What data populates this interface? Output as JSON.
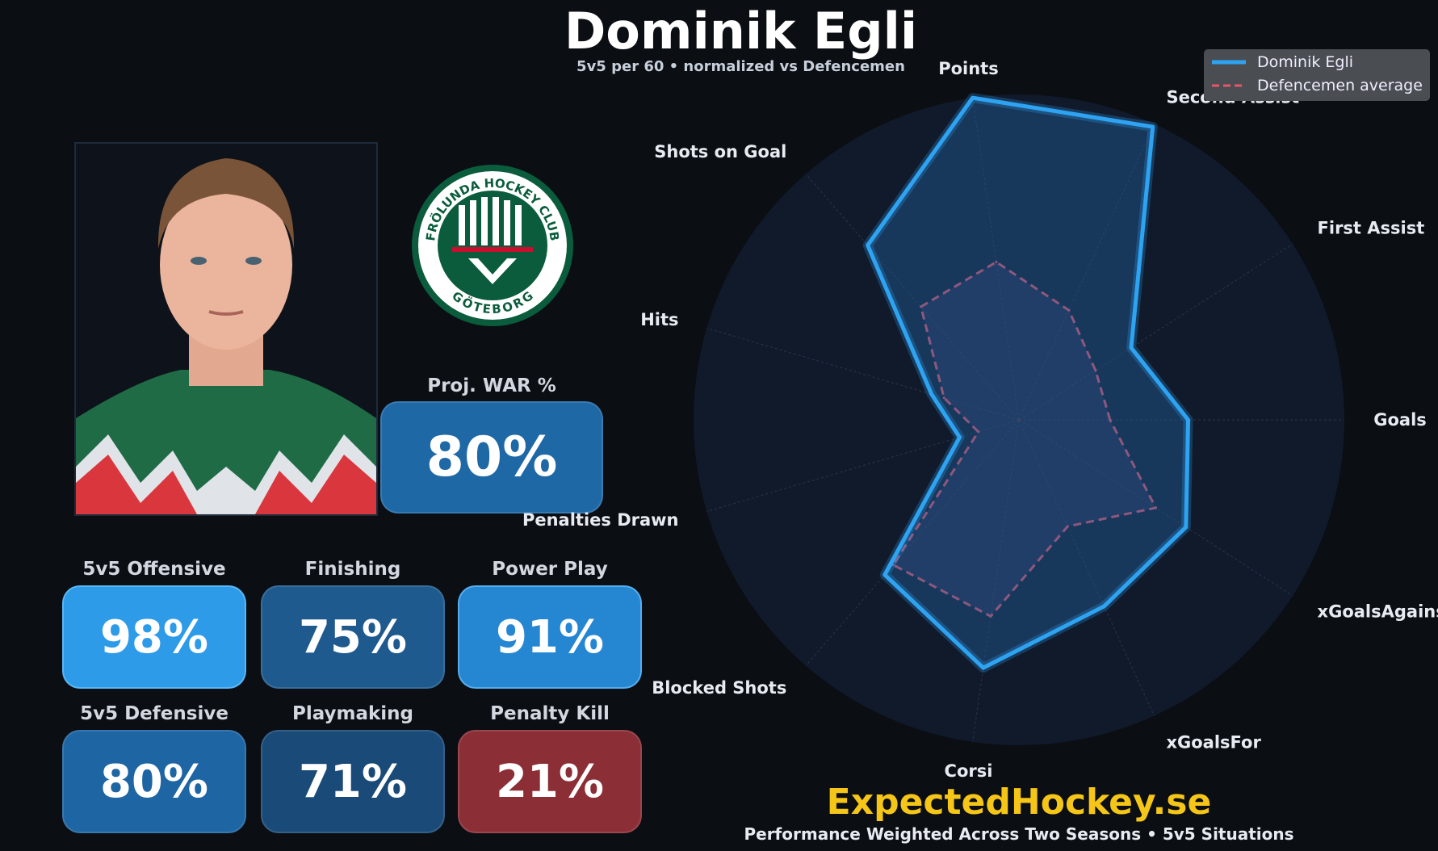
{
  "header": {
    "title": "Dominik Egli",
    "subtitle": "5v5 per 60  •  normalized vs Defencemen"
  },
  "player_photo": {
    "icon": "player-portrait"
  },
  "team_logo": {
    "text_top": "FRÖLUNDA HOCKEY CLUB",
    "text_bottom": "GÖTEBORG",
    "colors": {
      "green": "#0a5c3c",
      "red": "#c8102e"
    }
  },
  "war": {
    "label": "Proj. WAR %",
    "value": "80%",
    "color": "#1e68a6"
  },
  "ratings": [
    {
      "label": "5v5 Offensive",
      "value": "98%",
      "color": "#2d9be8"
    },
    {
      "label": "Finishing",
      "value": "75%",
      "color": "#1e5a8e"
    },
    {
      "label": "Power Play",
      "value": "91%",
      "color": "#2586d2"
    },
    {
      "label": "5v5 Defensive",
      "value": "80%",
      "color": "#1e65a3"
    },
    {
      "label": "Playmaking",
      "value": "71%",
      "color": "#1a4a78"
    },
    {
      "label": "Penalty Kill",
      "value": "21%",
      "color": "#8b2e36"
    }
  ],
  "chart_data": {
    "type": "radar",
    "axes": [
      "Goals",
      "First Assist",
      "Second Assist",
      "Points",
      "Shots on Goal",
      "Hits",
      "Penalties Drawn",
      "Blocked Shots",
      "Corsi",
      "xGoalsFor",
      "xGoalsAgainst"
    ],
    "range": [
      0,
      1
    ],
    "grid": true,
    "legend_placement": "top-right",
    "series": [
      {
        "name": "Dominik Egli",
        "color": "#2ea3f2",
        "style": "solid",
        "values": [
          0.52,
          0.41,
          0.99,
          1.0,
          0.71,
          0.28,
          0.19,
          0.63,
          0.77,
          0.63,
          0.61
        ]
      },
      {
        "name": "Defencemen average",
        "color": "#e8566a",
        "style": "dashed",
        "values": [
          0.28,
          0.28,
          0.37,
          0.49,
          0.46,
          0.24,
          0.13,
          0.59,
          0.61,
          0.36,
          0.5
        ]
      }
    ]
  },
  "branding": {
    "site": "ExpectedHockey.se",
    "footer": "Performance Weighted Across Two Seasons  •  5v5 Situations"
  }
}
